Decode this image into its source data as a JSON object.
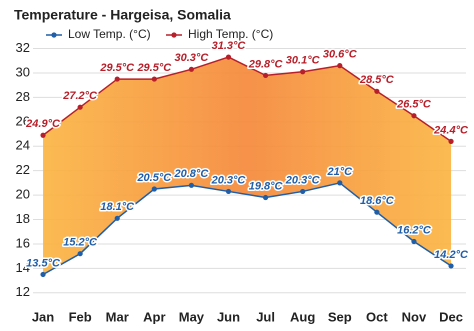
{
  "chart_data": {
    "type": "line",
    "title": "Temperature - Hargeisa, Somalia",
    "categories": [
      "Jan",
      "Feb",
      "Mar",
      "Apr",
      "May",
      "Jun",
      "Jul",
      "Aug",
      "Sep",
      "Oct",
      "Nov",
      "Dec"
    ],
    "series": [
      {
        "name": "Low Temp. (°C)",
        "color": "#1f5ea8",
        "values": [
          13.5,
          15.2,
          18.1,
          20.5,
          20.8,
          20.3,
          19.8,
          20.3,
          21,
          18.6,
          16.2,
          14.2
        ],
        "value_labels": [
          "13.5°C",
          "15.2°C",
          "18.1°C",
          "20.5°C",
          "20.8°C",
          "20.3°C",
          "19.8°C",
          "20.3°C",
          "21°C",
          "18.6°C",
          "16.2°C",
          "14.2°C"
        ]
      },
      {
        "name": "High Temp. (°C)",
        "color": "#b7202a",
        "values": [
          24.9,
          27.2,
          29.5,
          29.5,
          30.3,
          31.3,
          29.8,
          30.1,
          30.6,
          28.5,
          26.5,
          24.4
        ],
        "value_labels": [
          "24.9°C",
          "27.2°C",
          "29.5°C",
          "29.5°C",
          "30.3°C",
          "31.3°C",
          "29.8°C",
          "30.1°C",
          "30.6°C",
          "28.5°C",
          "26.5°C",
          "24.4°C"
        ]
      }
    ],
    "ylim": [
      11,
      32.7
    ],
    "yticks": [
      12,
      14,
      16,
      18,
      20,
      22,
      24,
      26,
      28,
      30,
      32
    ],
    "grid": true
  }
}
